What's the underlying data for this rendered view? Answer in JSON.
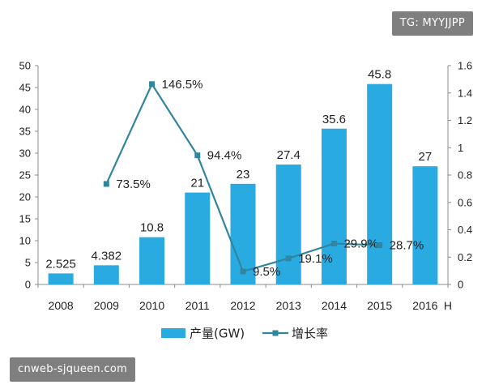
{
  "chart_data": {
    "type": "bar",
    "categories": [
      "2008",
      "2009",
      "2010",
      "2011",
      "2012",
      "2013",
      "2014",
      "2015",
      "2016"
    ],
    "x_suffix": "H",
    "series": [
      {
        "name": "产量(GW)",
        "type": "bar",
        "axis": "left",
        "color": "#29ABE2",
        "values": [
          2.525,
          4.382,
          10.8,
          21,
          23,
          27.4,
          35.6,
          45.8,
          27
        ],
        "labels": [
          "2.525",
          "4.382",
          "10.8",
          "21",
          "23",
          "27.4",
          "35.6",
          "45.8",
          "27"
        ]
      },
      {
        "name": "增长率",
        "type": "line",
        "axis": "right",
        "color": "#31859C",
        "values": [
          null,
          0.735,
          1.465,
          0.944,
          0.095,
          0.191,
          0.299,
          0.287,
          null
        ],
        "labels": [
          "",
          "73.5%",
          "146.5%",
          "94.4%",
          "9.5%",
          "19.1%",
          "29.9%",
          "28.7%",
          ""
        ]
      }
    ],
    "y_left": {
      "min": 0,
      "max": 50,
      "ticks": [
        "0",
        "5",
        "10",
        "15",
        "20",
        "25",
        "30",
        "35",
        "40",
        "45",
        "50"
      ]
    },
    "y_right": {
      "min": 0,
      "max": 1.6,
      "ticks": [
        "0",
        "0.2",
        "0.4",
        "0.6",
        "0.8",
        "1",
        "1.2",
        "1.4",
        "1.6"
      ]
    },
    "grid": false,
    "legend": "bottom-center",
    "title": "",
    "xlabel": "",
    "ylabel": ""
  },
  "watermarks": {
    "top": "TG: MYYJJPP",
    "bottom": "cnweb-sjqueen.com"
  }
}
